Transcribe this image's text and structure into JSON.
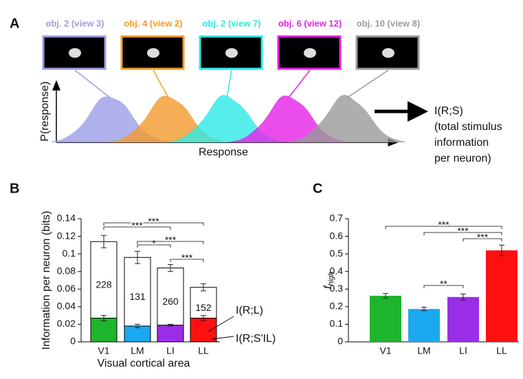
{
  "panel_labels": [
    "A",
    "B",
    "C"
  ],
  "panel_a": {
    "objects": [
      {
        "label": "obj. 2 (view 3)",
        "color": "#9a9de6"
      },
      {
        "label": "obj. 4 (view 2)",
        "color": "#f39a2c"
      },
      {
        "label": "obj. 2 (view 7)",
        "color": "#2ee8e8"
      },
      {
        "label": "obj. 6 (view 12)",
        "color": "#e621e6"
      },
      {
        "label": "obj. 10 (view 8)",
        "color": "#9a9a9a"
      }
    ],
    "ylabel": "P(response)",
    "xlabel": "Response",
    "output": [
      "I(R;S)",
      "(total stimulus",
      "information",
      "per neuron)"
    ]
  },
  "chart_data": [
    {
      "type": "bar",
      "ylabel": "Information per neuron (bits)",
      "xlabel": "Visual cortical area",
      "categories": [
        "V1",
        "LM",
        "LI",
        "LL"
      ],
      "series": [
        {
          "name": "I(R;S'IL)",
          "colors": [
            "#1db52b",
            "#1aa8f0",
            "#9a2ee6",
            "#ff1010"
          ],
          "values": [
            0.027,
            0.018,
            0.019,
            0.027
          ],
          "errors": [
            0.003,
            0.002,
            0.001,
            0.003
          ]
        },
        {
          "name": "I(R;L)",
          "color": "#ffffff",
          "values": [
            0.087,
            0.078,
            0.065,
            0.035
          ],
          "errors": [
            0.007,
            0.007,
            0.004,
            0.004
          ]
        }
      ],
      "n_labels": [
        228,
        131,
        260,
        152
      ],
      "ylim": [
        0,
        0.14
      ],
      "yticks": [
        0,
        0.02,
        0.04,
        0.06,
        0.08,
        0.1,
        0.12,
        0.14
      ],
      "significance": [
        {
          "from": 0,
          "to": 3,
          "label": "***"
        },
        {
          "from": 0,
          "to": 2,
          "label": "***"
        },
        {
          "from": 1,
          "to": 2,
          "label": "*"
        },
        {
          "from": 1,
          "to": 3,
          "label": "***"
        },
        {
          "from": 2,
          "to": 3,
          "label": "***"
        }
      ]
    },
    {
      "type": "bar",
      "ylabel": "f",
      "ylabel_sub": "high",
      "categories": [
        "V1",
        "LM",
        "LI",
        "LL"
      ],
      "colors": [
        "#1db52b",
        "#1aa8f0",
        "#9a2ee6",
        "#ff1010"
      ],
      "values": [
        0.262,
        0.187,
        0.255,
        0.52
      ],
      "errors": [
        0.013,
        0.01,
        0.017,
        0.03
      ],
      "ylim": [
        0,
        0.7
      ],
      "yticks": [
        0,
        0.1,
        0.2,
        0.3,
        0.4,
        0.5,
        0.6,
        0.7
      ],
      "significance": [
        {
          "from": 0,
          "to": 3,
          "label": "***"
        },
        {
          "from": 1,
          "to": 3,
          "label": "***"
        },
        {
          "from": 2,
          "to": 3,
          "label": "***"
        },
        {
          "from": 1,
          "to": 2,
          "label": "**"
        }
      ]
    }
  ]
}
